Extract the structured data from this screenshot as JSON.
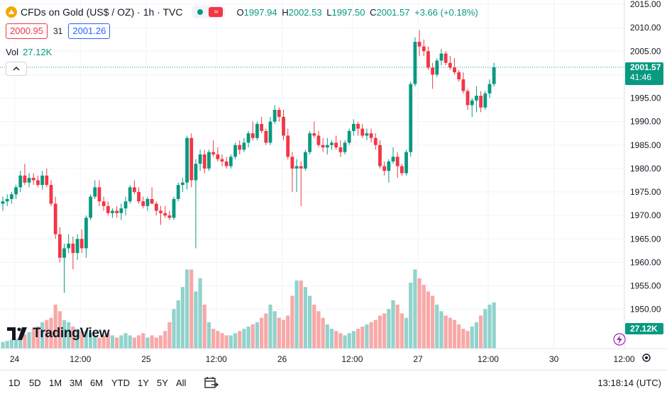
{
  "header": {
    "symbol_title": "CFDs on Gold (US$ / OZ) · 1h · TVC",
    "ohlc": {
      "open_key": "O",
      "open": "1997.94",
      "high_key": "H",
      "high": "2002.53",
      "low_key": "L",
      "low": "1997.50",
      "close_key": "C",
      "close": "2001.57",
      "change": "+3.66 (+0.18%)"
    },
    "bid": "2000.95",
    "spread": "31",
    "ask": "2001.26",
    "volume_label": "Vol",
    "volume_value": "27.12K"
  },
  "brand": {
    "name": "TradingView"
  },
  "bottom_bar": {
    "ranges": [
      "1D",
      "5D",
      "1M",
      "3M",
      "6M",
      "YTD",
      "1Y",
      "5Y",
      "All"
    ],
    "clock": "13:18:14 (UTC)"
  },
  "colors": {
    "up": "#089981",
    "down": "#f23645",
    "up_volume": "#92d2cc",
    "down_volume": "#f7a9a7"
  },
  "chart_data": {
    "type": "candlestick",
    "y_ticks": [
      1950,
      1955,
      1960,
      1965,
      1970,
      1975,
      1980,
      1985,
      1990,
      1995,
      2000,
      2005,
      2010,
      2015
    ],
    "y_tick_labels": [
      "1950.00",
      "1955.00",
      "1960.00",
      "1965.00",
      "1970.00",
      "1975.00",
      "1980.00",
      "1985.00",
      "1990.00",
      "1995.00",
      "2000.00",
      "2005.00",
      "2010.00",
      "2015.00"
    ],
    "x_labels": [
      "24",
      "12:00",
      "25",
      "12:00",
      "26",
      "12:00",
      "27",
      "12:00",
      "30",
      "12:00"
    ],
    "last_price": "2001.57",
    "countdown": "41:46",
    "volume_badge": "27.12K",
    "ohlc": [
      [
        1972.5,
        1974.0,
        1971.0,
        1973.0
      ],
      [
        1973.0,
        1974.5,
        1972.0,
        1973.5
      ],
      [
        1973.5,
        1975.0,
        1972.5,
        1974.5
      ],
      [
        1974.5,
        1976.5,
        1973.5,
        1976.0
      ],
      [
        1976.0,
        1979.5,
        1975.0,
        1978.5
      ],
      [
        1978.5,
        1981.0,
        1976.5,
        1977.0
      ],
      [
        1977.0,
        1979.0,
        1976.0,
        1978.0
      ],
      [
        1978.0,
        1979.0,
        1976.5,
        1977.5
      ],
      [
        1977.5,
        1978.5,
        1976.0,
        1976.5
      ],
      [
        1976.5,
        1979.5,
        1975.5,
        1978.5
      ],
      [
        1978.5,
        1980.0,
        1976.0,
        1976.5
      ],
      [
        1976.5,
        1977.5,
        1972.0,
        1972.5
      ],
      [
        1972.5,
        1974.0,
        1965.0,
        1966.0
      ],
      [
        1966.0,
        1967.5,
        1960.0,
        1961.0
      ],
      [
        1961.0,
        1964.0,
        1953.5,
        1963.0
      ],
      [
        1963.0,
        1966.0,
        1962.0,
        1964.0
      ],
      [
        1964.0,
        1965.5,
        1958.5,
        1962.0
      ],
      [
        1962.0,
        1966.0,
        1960.5,
        1965.0
      ],
      [
        1965.0,
        1967.0,
        1962.0,
        1963.0
      ],
      [
        1963.0,
        1970.0,
        1961.0,
        1969.5
      ],
      [
        1969.5,
        1974.5,
        1969.0,
        1974.0
      ],
      [
        1974.0,
        1977.5,
        1973.5,
        1976.0
      ],
      [
        1976.0,
        1977.5,
        1972.0,
        1973.0
      ],
      [
        1973.0,
        1974.0,
        1971.0,
        1972.0
      ],
      [
        1972.0,
        1973.0,
        1970.0,
        1970.5
      ],
      [
        1970.5,
        1971.5,
        1969.5,
        1971.0
      ],
      [
        1971.0,
        1972.0,
        1969.5,
        1970.5
      ],
      [
        1970.5,
        1972.5,
        1969.0,
        1971.5
      ],
      [
        1971.5,
        1974.0,
        1970.0,
        1973.0
      ],
      [
        1973.0,
        1976.5,
        1972.5,
        1976.0
      ],
      [
        1976.0,
        1977.5,
        1974.5,
        1975.0
      ],
      [
        1975.0,
        1976.0,
        1972.5,
        1973.0
      ],
      [
        1973.0,
        1974.0,
        1971.5,
        1972.0
      ],
      [
        1972.0,
        1974.0,
        1971.0,
        1973.5
      ],
      [
        1973.5,
        1976.0,
        1972.5,
        1972.5
      ],
      [
        1972.5,
        1973.0,
        1970.0,
        1971.0
      ],
      [
        1971.0,
        1972.0,
        1968.0,
        1970.5
      ],
      [
        1970.5,
        1972.0,
        1969.5,
        1970.0
      ],
      [
        1970.0,
        1971.0,
        1969.0,
        1969.5
      ],
      [
        1969.5,
        1974.0,
        1969.0,
        1973.5
      ],
      [
        1973.5,
        1977.0,
        1973.0,
        1976.5
      ],
      [
        1976.5,
        1978.0,
        1975.0,
        1977.0
      ],
      [
        1977.0,
        1987.0,
        1975.5,
        1986.5
      ],
      [
        1986.5,
        1987.5,
        1976.0,
        1977.5
      ],
      [
        1977.5,
        1982.0,
        1963.0,
        1981.0
      ],
      [
        1981.0,
        1984.0,
        1979.5,
        1983.0
      ],
      [
        1983.0,
        1984.0,
        1979.0,
        1980.0
      ],
      [
        1980.0,
        1984.0,
        1979.5,
        1983.5
      ],
      [
        1983.5,
        1986.0,
        1982.5,
        1983.0
      ],
      [
        1983.0,
        1984.5,
        1981.5,
        1982.0
      ],
      [
        1982.0,
        1983.0,
        1980.5,
        1981.5
      ],
      [
        1981.5,
        1982.5,
        1980.0,
        1980.5
      ],
      [
        1980.5,
        1983.0,
        1980.0,
        1982.5
      ],
      [
        1982.5,
        1985.5,
        1982.0,
        1985.0
      ],
      [
        1985.0,
        1986.0,
        1983.0,
        1984.0
      ],
      [
        1984.0,
        1986.5,
        1983.5,
        1985.5
      ],
      [
        1985.5,
        1988.0,
        1984.5,
        1987.5
      ],
      [
        1987.5,
        1990.0,
        1986.0,
        1986.5
      ],
      [
        1986.5,
        1990.0,
        1986.0,
        1989.5
      ],
      [
        1989.5,
        1991.0,
        1987.5,
        1988.0
      ],
      [
        1988.0,
        1988.5,
        1985.0,
        1985.5
      ],
      [
        1985.5,
        1991.0,
        1985.0,
        1990.0
      ],
      [
        1990.0,
        1993.5,
        1989.5,
        1992.5
      ],
      [
        1992.5,
        1993.0,
        1990.0,
        1991.0
      ],
      [
        1991.0,
        1992.5,
        1986.0,
        1987.0
      ],
      [
        1987.0,
        1988.5,
        1982.0,
        1982.5
      ],
      [
        1982.5,
        1983.5,
        1975.0,
        1980.0
      ],
      [
        1980.0,
        1982.0,
        1975.0,
        1980.5
      ],
      [
        1980.5,
        1981.5,
        1972.0,
        1980.0
      ],
      [
        1980.0,
        1984.0,
        1979.5,
        1983.5
      ],
      [
        1983.5,
        1988.0,
        1983.0,
        1987.5
      ],
      [
        1987.5,
        1990.0,
        1986.5,
        1987.0
      ],
      [
        1987.0,
        1988.0,
        1984.5,
        1985.0
      ],
      [
        1985.0,
        1986.5,
        1983.5,
        1984.5
      ],
      [
        1984.5,
        1986.5,
        1983.0,
        1985.0
      ],
      [
        1985.0,
        1986.0,
        1984.0,
        1985.5
      ],
      [
        1985.5,
        1987.0,
        1984.0,
        1984.5
      ],
      [
        1984.5,
        1986.0,
        1982.5,
        1983.5
      ],
      [
        1983.5,
        1986.0,
        1983.0,
        1985.5
      ],
      [
        1985.5,
        1988.5,
        1985.0,
        1988.0
      ],
      [
        1988.0,
        1990.5,
        1987.0,
        1989.5
      ],
      [
        1989.5,
        1990.0,
        1987.0,
        1988.5
      ],
      [
        1988.5,
        1989.5,
        1986.5,
        1987.0
      ],
      [
        1987.0,
        1988.5,
        1986.0,
        1987.5
      ],
      [
        1987.5,
        1988.5,
        1985.5,
        1986.5
      ],
      [
        1986.5,
        1987.5,
        1984.0,
        1985.0
      ],
      [
        1985.0,
        1986.0,
        1980.0,
        1980.5
      ],
      [
        1980.5,
        1981.5,
        1978.5,
        1979.5
      ],
      [
        1979.5,
        1982.0,
        1977.0,
        1981.5
      ],
      [
        1981.5,
        1984.5,
        1981.0,
        1982.5
      ],
      [
        1982.5,
        1983.5,
        1978.0,
        1980.5
      ],
      [
        1980.5,
        1981.0,
        1978.5,
        1979.0
      ],
      [
        1979.0,
        1984.0,
        1978.5,
        1983.5
      ],
      [
        1983.5,
        1998.5,
        1982.5,
        1998.0
      ],
      [
        1998.0,
        2008.0,
        1997.5,
        2007.0
      ],
      [
        2007.0,
        2009.5,
        2004.0,
        2006.0
      ],
      [
        2006.0,
        2007.5,
        2004.0,
        2005.0
      ],
      [
        2005.0,
        2006.0,
        2001.0,
        2001.5
      ],
      [
        2001.5,
        2002.5,
        1997.0,
        2000.0
      ],
      [
        2000.0,
        2003.5,
        1999.5,
        2003.0
      ],
      [
        2003.0,
        2005.5,
        2002.0,
        2004.5
      ],
      [
        2004.5,
        2005.0,
        2002.0,
        2002.5
      ],
      [
        2002.5,
        2004.0,
        2001.0,
        2001.5
      ],
      [
        2001.5,
        2003.5,
        2000.0,
        2000.5
      ],
      [
        2000.5,
        2001.0,
        1998.5,
        1999.0
      ],
      [
        1999.0,
        2000.5,
        1996.0,
        1996.5
      ],
      [
        1996.5,
        1997.0,
        1992.5,
        1993.5
      ],
      [
        1993.5,
        1995.0,
        1991.0,
        1994.5
      ],
      [
        1994.5,
        1997.5,
        1992.0,
        1995.5
      ],
      [
        1995.5,
        1996.5,
        1992.0,
        1993.0
      ],
      [
        1993.0,
        1996.5,
        1992.5,
        1996.0
      ],
      [
        1996.0,
        1999.0,
        1995.0,
        1998.0
      ],
      [
        1998.0,
        2002.53,
        1997.5,
        2001.57
      ]
    ],
    "volume": [
      3,
      3.5,
      4,
      4.5,
      5,
      6.5,
      7.5,
      9,
      10,
      12,
      13,
      14,
      20,
      17,
      13,
      12,
      10,
      9,
      8,
      8,
      7,
      6,
      5,
      6,
      7,
      6,
      5,
      6,
      7,
      6,
      5,
      6,
      7,
      5,
      6,
      5,
      6,
      8,
      12,
      18,
      22,
      28,
      36,
      36,
      26,
      32,
      20,
      12,
      9,
      8,
      7,
      6,
      6,
      7,
      8,
      9,
      10,
      11,
      12,
      14,
      16,
      20,
      17,
      14,
      13,
      15,
      24,
      31,
      31,
      28,
      24,
      20,
      17,
      14,
      11,
      9,
      8,
      7,
      6,
      7,
      8,
      9,
      10,
      11,
      12,
      13,
      15,
      16,
      18,
      22,
      20,
      16,
      14,
      30,
      36,
      32,
      29,
      26,
      24,
      20,
      17,
      15,
      14,
      13,
      11,
      9,
      8,
      10,
      12,
      15,
      18,
      20,
      21,
      21,
      26
    ]
  }
}
